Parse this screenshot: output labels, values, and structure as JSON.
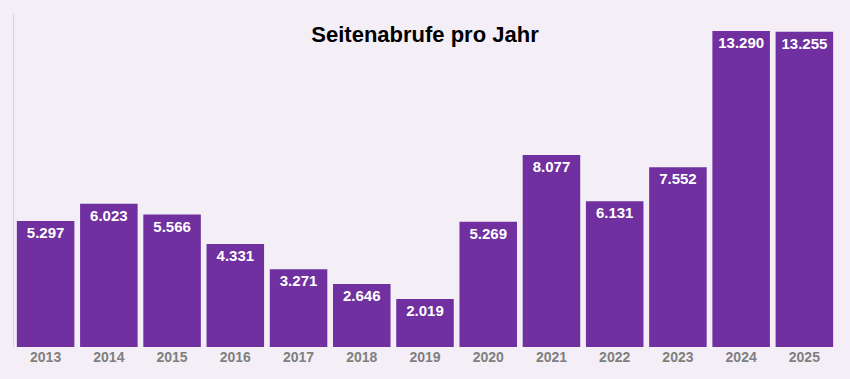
{
  "chart_data": {
    "type": "bar",
    "title": "Seitenabrufe pro Jahr",
    "categories": [
      "2013",
      "2014",
      "2015",
      "2016",
      "2017",
      "2018",
      "2019",
      "2020",
      "2021",
      "2022",
      "2023",
      "2024",
      "2025"
    ],
    "values": [
      5297,
      6023,
      5566,
      4331,
      3271,
      2646,
      2019,
      5269,
      8077,
      6131,
      7552,
      13290,
      13255
    ],
    "value_labels": [
      "5.297",
      "6.023",
      "5.566",
      "4.331",
      "3.271",
      "2.646",
      "2.019",
      "5.269",
      "8.077",
      "6.131",
      "7.552",
      "13.290",
      "13.255"
    ],
    "color": "#7030a0",
    "ylim": [
      0,
      14000
    ],
    "grid": false,
    "data_labels": true,
    "tick_labels": "x"
  }
}
